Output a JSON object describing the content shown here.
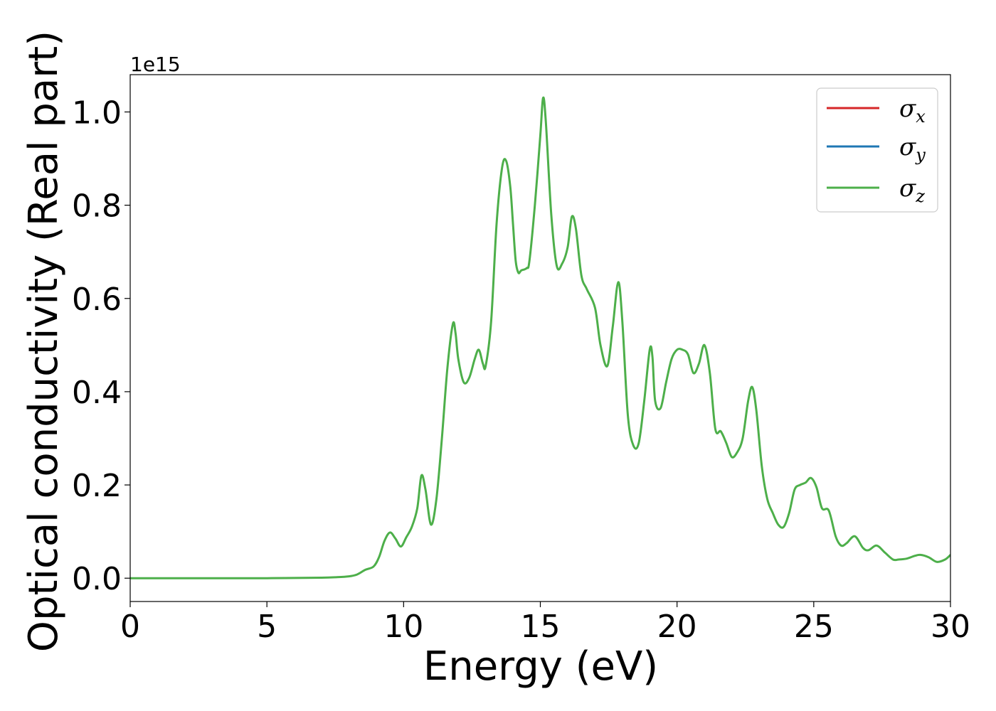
{
  "chart_data": {
    "type": "line",
    "xlabel": "Energy (eV)",
    "ylabel": "Optical conductivity (Real part)",
    "y_offset_label": "1e15",
    "xlim": [
      0,
      30
    ],
    "ylim": [
      -0.05,
      1.08
    ],
    "x_ticks": [
      0,
      5,
      10,
      15,
      20,
      25,
      30
    ],
    "x_tick_labels": [
      "0",
      "5",
      "10",
      "15",
      "20",
      "25",
      "30"
    ],
    "y_ticks": [
      0.0,
      0.2,
      0.4,
      0.6,
      0.8,
      1.0
    ],
    "y_tick_labels": [
      "0.0",
      "0.2",
      "0.4",
      "0.6",
      "0.8",
      "1.0"
    ],
    "grid": false,
    "legend_position": "top-right",
    "legend": [
      {
        "label": "σx",
        "base": "σ",
        "sub": "x",
        "color": "#d62728"
      },
      {
        "label": "σy",
        "base": "σ",
        "sub": "y",
        "color": "#1f77b4"
      },
      {
        "label": "σz",
        "base": "σ",
        "sub": "z",
        "color": "#4daf4a"
      }
    ],
    "series": [
      {
        "name": "σz",
        "color": "#4daf4a",
        "x": [
          0,
          2,
          4,
          5,
          6,
          7,
          7.5,
          8,
          8.3,
          8.6,
          8.9,
          9.1,
          9.3,
          9.5,
          9.7,
          9.9,
          10.1,
          10.3,
          10.5,
          10.65,
          10.8,
          11.0,
          11.2,
          11.4,
          11.6,
          11.8,
          11.9,
          12.0,
          12.2,
          12.4,
          12.6,
          12.75,
          12.9,
          13.0,
          13.2,
          13.4,
          13.6,
          13.75,
          13.9,
          14.0,
          14.1,
          14.2,
          14.3,
          14.5,
          14.6,
          14.8,
          15.0,
          15.1,
          15.2,
          15.4,
          15.6,
          15.8,
          16.0,
          16.15,
          16.3,
          16.5,
          16.7,
          17.0,
          17.2,
          17.45,
          17.65,
          17.85,
          18.0,
          18.2,
          18.4,
          18.6,
          18.8,
          19.0,
          19.1,
          19.2,
          19.4,
          19.6,
          19.8,
          20.0,
          20.2,
          20.4,
          20.6,
          20.8,
          21.0,
          21.2,
          21.4,
          21.6,
          21.8,
          22.0,
          22.2,
          22.4,
          22.6,
          22.75,
          22.9,
          23.1,
          23.3,
          23.5,
          23.7,
          23.9,
          24.1,
          24.3,
          24.5,
          24.7,
          24.9,
          25.1,
          25.3,
          25.55,
          25.8,
          26.0,
          26.2,
          26.5,
          26.8,
          27.0,
          27.3,
          27.6,
          27.9,
          28.1,
          28.4,
          28.7,
          28.9,
          29.2,
          29.5,
          29.8,
          30.0
        ],
        "y": [
          0.0,
          0.0,
          0.0,
          0.0,
          0.0005,
          0.001,
          0.002,
          0.004,
          0.008,
          0.018,
          0.025,
          0.045,
          0.08,
          0.098,
          0.085,
          0.068,
          0.088,
          0.11,
          0.15,
          0.22,
          0.19,
          0.115,
          0.17,
          0.3,
          0.45,
          0.545,
          0.525,
          0.47,
          0.42,
          0.43,
          0.47,
          0.49,
          0.46,
          0.455,
          0.55,
          0.76,
          0.88,
          0.895,
          0.84,
          0.76,
          0.68,
          0.655,
          0.66,
          0.665,
          0.68,
          0.8,
          0.95,
          1.03,
          0.98,
          0.78,
          0.67,
          0.675,
          0.71,
          0.775,
          0.75,
          0.65,
          0.62,
          0.58,
          0.5,
          0.455,
          0.54,
          0.635,
          0.55,
          0.35,
          0.285,
          0.29,
          0.38,
          0.49,
          0.475,
          0.38,
          0.365,
          0.42,
          0.47,
          0.49,
          0.49,
          0.48,
          0.44,
          0.46,
          0.5,
          0.44,
          0.32,
          0.315,
          0.29,
          0.26,
          0.27,
          0.3,
          0.38,
          0.41,
          0.36,
          0.24,
          0.17,
          0.14,
          0.115,
          0.11,
          0.14,
          0.19,
          0.2,
          0.205,
          0.215,
          0.195,
          0.15,
          0.145,
          0.09,
          0.07,
          0.075,
          0.09,
          0.065,
          0.06,
          0.07,
          0.055,
          0.04,
          0.04,
          0.042,
          0.048,
          0.05,
          0.045,
          0.035,
          0.04,
          0.05
        ]
      }
    ],
    "note_hidden_series": [
      "σx",
      "σy"
    ]
  }
}
